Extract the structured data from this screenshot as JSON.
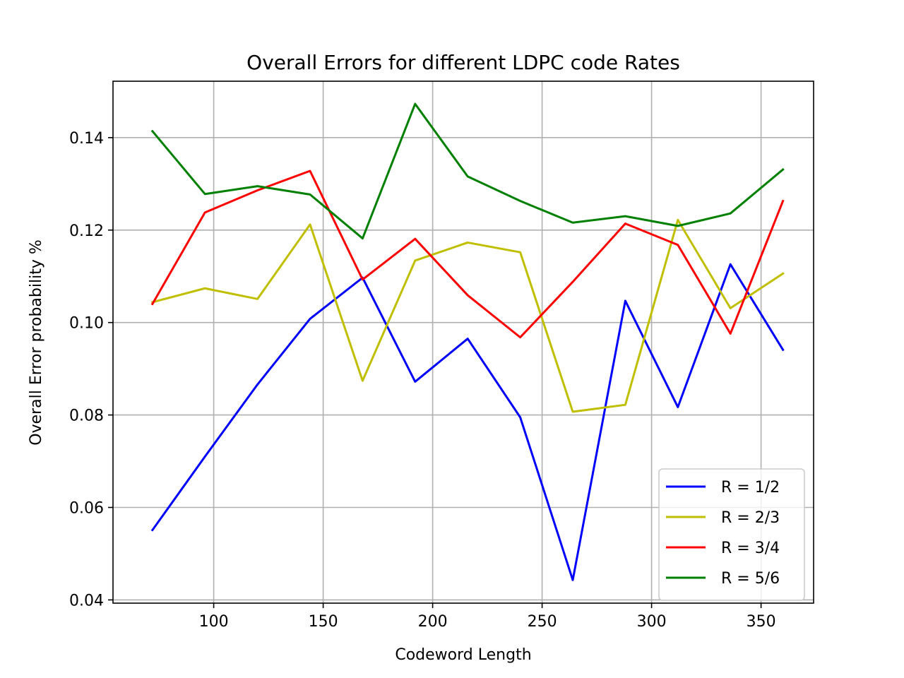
{
  "chart_data": {
    "type": "line",
    "title": "Overall Errors for different LDPC code Rates",
    "xlabel": "Codeword Length",
    "ylabel": "Overall Error probability %",
    "xlim": [
      54,
      374
    ],
    "ylim": [
      0.0393,
      0.1522
    ],
    "xticks": [
      100,
      150,
      200,
      250,
      300,
      350
    ],
    "xtick_labels": [
      "100",
      "150",
      "200",
      "250",
      "300",
      "350"
    ],
    "yticks": [
      0.04,
      0.06,
      0.08,
      0.1,
      0.12,
      0.14
    ],
    "ytick_labels": [
      "0.04",
      "0.06",
      "0.08",
      "0.10",
      "0.12",
      "0.14"
    ],
    "grid": true,
    "legend_position": "lower-right",
    "x": [
      72,
      96,
      120,
      144,
      168,
      192,
      216,
      240,
      264,
      288,
      312,
      336,
      360
    ],
    "series": [
      {
        "name": "R = 1/2",
        "color": "#0000ff",
        "values": [
          0.0551,
          0.071,
          0.0866,
          0.1008,
          0.1097,
          0.0872,
          0.0965,
          0.0795,
          0.0443,
          0.1047,
          0.0817,
          0.1126,
          0.0941
        ]
      },
      {
        "name": "R = 2/3",
        "color": "#bfbf00",
        "values": [
          0.1044,
          0.1074,
          0.1051,
          0.1212,
          0.0874,
          0.1134,
          0.1173,
          0.1152,
          0.0807,
          0.0822,
          0.1222,
          0.1031,
          0.1106
        ]
      },
      {
        "name": "R = 3/4",
        "color": "#ff0000",
        "values": [
          0.104,
          0.1238,
          0.1286,
          0.1328,
          0.1093,
          0.1181,
          0.1059,
          0.0968,
          0.1088,
          0.1214,
          0.1168,
          0.0976,
          0.1263
        ]
      },
      {
        "name": "R = 5/6",
        "color": "#008000",
        "values": [
          0.1414,
          0.1278,
          0.1295,
          0.1277,
          0.1182,
          0.1473,
          0.1316,
          0.1263,
          0.1216,
          0.123,
          0.1209,
          0.1236,
          0.1331
        ]
      }
    ]
  }
}
